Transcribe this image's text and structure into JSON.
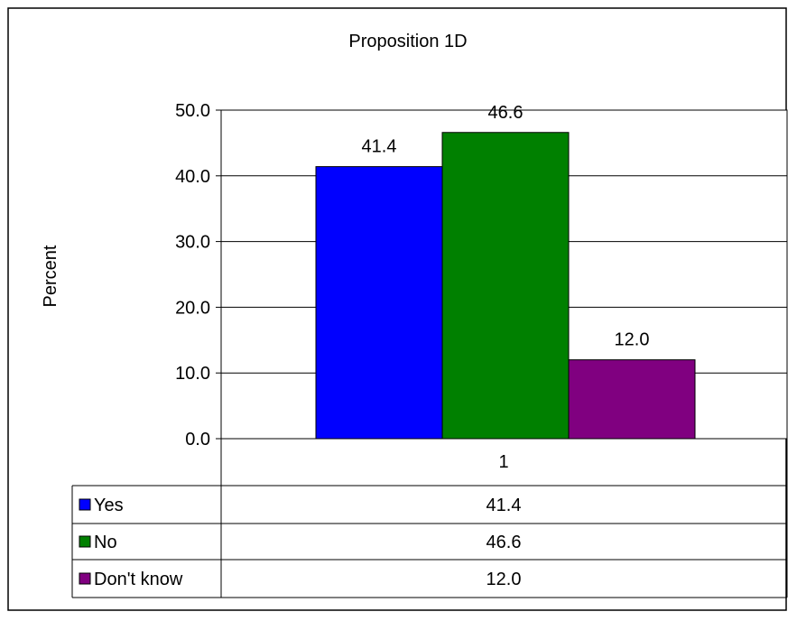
{
  "chart_data": {
    "type": "bar",
    "title": "Proposition 1D",
    "ylabel": "Percent",
    "xlabel": "",
    "categories": [
      "1"
    ],
    "series": [
      {
        "name": "Yes",
        "values": [
          41.4
        ],
        "color": "#0000FF"
      },
      {
        "name": "No",
        "values": [
          46.6
        ],
        "color": "#008000"
      },
      {
        "name": "Don't know",
        "values": [
          12.0
        ],
        "color": "#800080"
      }
    ],
    "ylim": [
      0,
      50
    ],
    "y_ticks": [
      "0.0",
      "10.0",
      "20.0",
      "30.0",
      "40.0",
      "50.0"
    ],
    "data_labels": [
      "41.4",
      "46.6",
      "12.0"
    ],
    "table_values": [
      "41.4",
      "46.6",
      "12.0"
    ],
    "grid": true,
    "legend": "data table below chart"
  }
}
